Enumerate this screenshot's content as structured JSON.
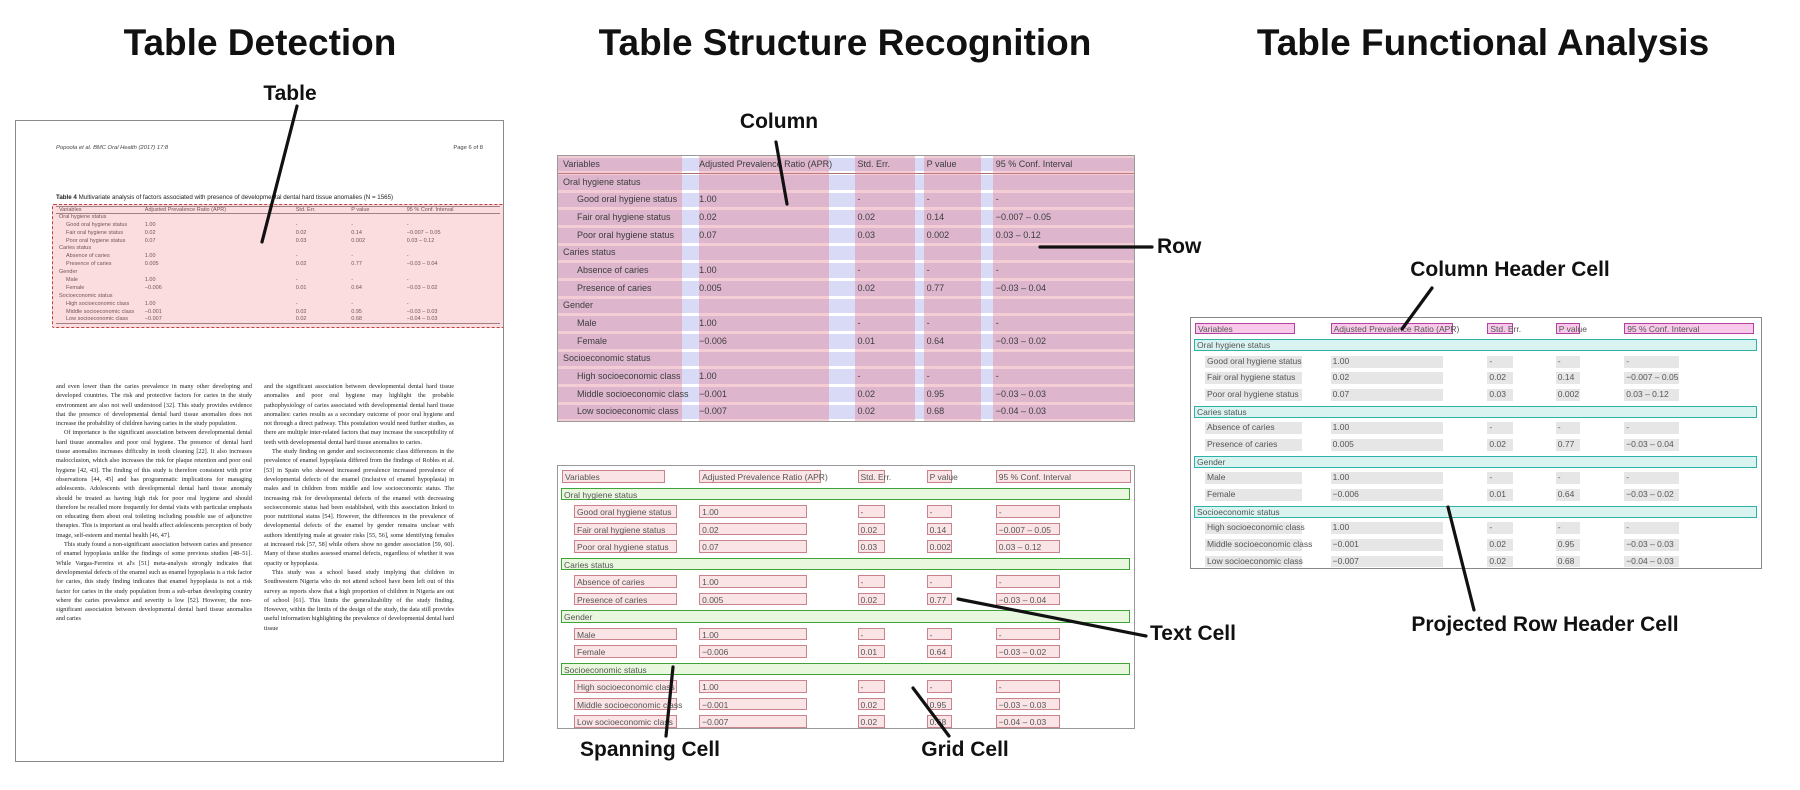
{
  "panels": {
    "detection": {
      "title": "Table Detection",
      "callout": "Table"
    },
    "structure": {
      "title": "Table Structure Recognition",
      "callouts": {
        "column": "Column",
        "row": "Row",
        "spanning_cell": "Spanning Cell",
        "grid_cell": "Grid Cell",
        "text_cell": "Text Cell"
      }
    },
    "functional": {
      "title": "Table Functional Analysis",
      "callouts": {
        "column_header_cell": "Column Header Cell",
        "projected_row_header_cell": "Projected Row Header Cell"
      }
    }
  },
  "document": {
    "journal_header": "Popoola et al. BMC Oral Health  (2017) 17:8",
    "page_header": "Page 6 of 8",
    "caption_label": "Table 4",
    "caption_text": " Multivariate analysis of factors associated with presence of developmental dental hard tissue anomalies (N = 1565)",
    "body_left": [
      "and even lower than the caries prevalence in many other developing and developed countries. The risk and protective factors for caries in the study environment are also not well understood [32]. This study provides evidence that the presence of developmental dental hard tissue anomalies does not increase the probability of children having caries in the study population.",
      "Of importance is the significant association between developmental dental hard tissue anomalies and poor oral hygiene. The presence of dental hard tissue anomalies increases difficulty in tooth cleaning [22]. It also increases malocclusion, which also increases the risk for plaque retention and poor oral hygiene [42, 43]. The finding of this study is therefore consistent with prior observations [44, 45] and has programmatic implications for managing adolescents. Adolescents with developmental dental hard tissue anomaly should be treated as having high risk for poor oral hygiene and should therefore be recalled more frequently for dental visits with particular emphasis on educating them about oral toileting including possible use of adjunctive therapies. This is important as oral health affect adolescents perception of body image, self-esteem and mental health [46, 47].",
      "This study found a non-significant association between caries and presence of enamel hypoplasia unlike the findings of some previous studies [48–51]. While Vargas-Ferreira et al's [51] meta-analysis strongly indicates that developmental defects of the enamel such as enamel hypoplasia is a risk factor for caries, this study finding indicates that enamel hypoplasia is not a risk factor for caries in the study population from a sub-urban developing country where the caries prevalence and severity is low [52]. However, the non-significant association between developmental dental hard tissue anomalies and caries"
    ],
    "body_right": [
      "and the significant association between developmental dental hard tissue anomalies and poor oral hygiene may highlight the probable pathophysiology of caries associated with developmental dental hard tissue anomalies: caries results as a secondary outcome of poor oral hygiene and not through a direct pathway. This postulation would need further studies, as there are multiple inter-related factors that may increase the susceptibility of teeth with developmental dental hard tissue anomalies to caries.",
      "The study finding on gender and socioeconomic class differences in the prevalence of enamel hypoplasia differed from the findings of Robles et al. [53] in Spain who showed increased prevalence increased prevalence of developmental defects of the enamel (inclusive of enamel hypoplasia) in males and in children from middle and low socioeconomic status. The increasing risk for developmental defects of the enamel with decreasing socioeconomic status had been established, with this association linked to poor nutritional status [54]. However, the differences in the prevalence of developmental defects of the enamel by gender remains unclear with authors identifying male at greater risks [55, 56], some identifying females at increased risk [57, 58] while others show no gender association [59, 60]. Many of these studies assessed enamel defects, regardless of whether it was opacity or hypoplasia.",
      "This study was a school based study implying that children in Southwestern Nigeria who do not attend school have been left out of this survey as reports show that a high proportion of children in Nigeria are out of school [61]. This limits the generalizability of the study finding. However, within the limits of the design of the study, the data still provides useful information highlighting the prevalence of developmental dental hard tissue"
    ]
  },
  "table": {
    "columns": [
      "Variables",
      "Adjusted Prevalence Ratio (APR)",
      "Std. Err.",
      "P value",
      "95 % Conf. Interval"
    ],
    "rows": [
      {
        "type": "section",
        "label": "Oral hygiene status"
      },
      {
        "type": "data",
        "cells": [
          "Good oral hygiene status",
          "1.00",
          "-",
          "-",
          "-"
        ]
      },
      {
        "type": "data",
        "cells": [
          "Fair oral hygiene status",
          "0.02",
          "0.02",
          "0.14",
          "−0.007 – 0.05"
        ]
      },
      {
        "type": "data",
        "cells": [
          "Poor oral hygiene status",
          "0.07",
          "0.03",
          "0.002",
          "0.03 – 0.12"
        ]
      },
      {
        "type": "section",
        "label": "Caries status"
      },
      {
        "type": "data",
        "cells": [
          "Absence of caries",
          "1.00",
          "-",
          "-",
          "-"
        ]
      },
      {
        "type": "data",
        "cells": [
          "Presence of caries",
          "0.005",
          "0.02",
          "0.77",
          "−0.03 – 0.04"
        ]
      },
      {
        "type": "section",
        "label": "Gender"
      },
      {
        "type": "data",
        "cells": [
          "Male",
          "1.00",
          "-",
          "-",
          "-"
        ]
      },
      {
        "type": "data",
        "cells": [
          "Female",
          "−0.006",
          "0.01",
          "0.64",
          "−0.03 – 0.02"
        ]
      },
      {
        "type": "section",
        "label": "Socioeconomic status"
      },
      {
        "type": "data",
        "cells": [
          "High socioeconomic class",
          "1.00",
          "-",
          "-",
          "-"
        ]
      },
      {
        "type": "data",
        "cells": [
          "Middle socioeconomic class",
          "−0.001",
          "0.02",
          "0.95",
          "−0.03 – 0.03"
        ]
      },
      {
        "type": "data",
        "cells": [
          "Low socioeconomic class",
          "−0.007",
          "0.02",
          "0.68",
          "−0.04 – 0.03"
        ]
      }
    ]
  },
  "colors": {
    "detection_fill": "#f6a0a6",
    "detection_border": "#bf4040",
    "column_band": "#e48094",
    "row_band": "#a5a8e6",
    "grid_cell_fill": "#fae4e6",
    "grid_cell_border": "#c8838d",
    "spanning_cell_fill": "#e8f7dd",
    "spanning_cell_border": "#3fa23a",
    "column_header_fill": "#f8c9e9",
    "column_header_border": "#b340a0",
    "projected_row_header_fill": "#d9f4f0",
    "projected_row_header_border": "#2db2a9",
    "text_highlight": "#e6e6e6"
  }
}
